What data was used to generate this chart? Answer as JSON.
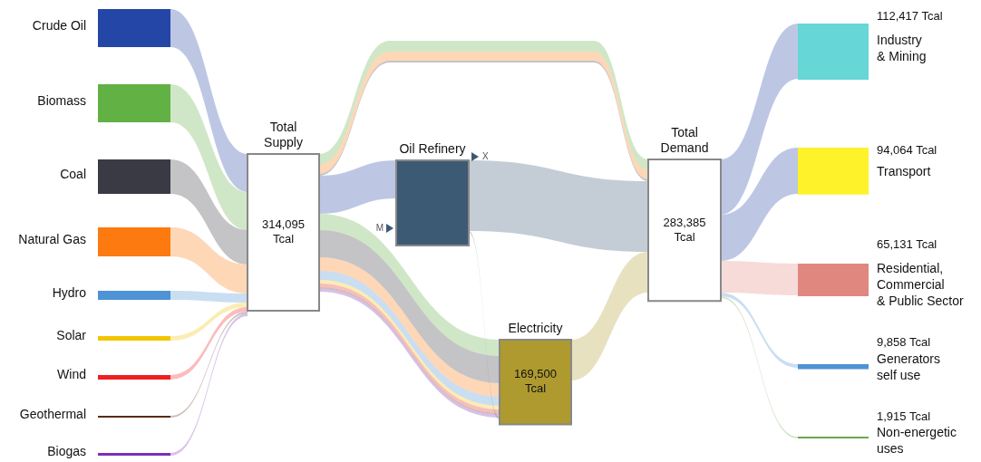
{
  "chart_data": {
    "type": "other",
    "categories": [
      "Crude Oil",
      "Biomass",
      "Coal",
      "Natural Gas",
      "Hydro",
      "Solar",
      "Wind",
      "Geothermal",
      "Biogas",
      "Total Supply",
      "Oil Refinery",
      "Electricity",
      "Total Demand",
      "Industry & Mining",
      "Transport",
      "Residential, Commercial & Public Sector",
      "Generators self use",
      "Non-energetic uses"
    ],
    "values": [
      null,
      null,
      null,
      null,
      null,
      null,
      null,
      null,
      null,
      314095,
      null,
      169500,
      283385,
      112417,
      94064,
      65131,
      9858,
      1915
    ],
    "value_labels": [
      null,
      null,
      null,
      null,
      null,
      null,
      null,
      null,
      null,
      "314,095 Tcal",
      null,
      "169,500 Tcal",
      "283,385 Tcal",
      "112,417 Tcal",
      "94,064 Tcal",
      "65,131 Tcal",
      "9,858 Tcal",
      "1,915 Tcal"
    ],
    "colors": [
      "#2446a6",
      "#62b145",
      "#3a3a45",
      "#fd7a10",
      "#4e93d5",
      "#f2c500",
      "#ee2020",
      "#5a2a15",
      "#7b2fbe",
      "#ffffff",
      "#3d5a75",
      "#ae9a2f",
      "#ffffff",
      "#66d6d6",
      "#fef22a",
      "#e08880",
      "#4e93d5",
      "#6aa84f"
    ],
    "annotations": [
      "X",
      "M"
    ]
  }
}
